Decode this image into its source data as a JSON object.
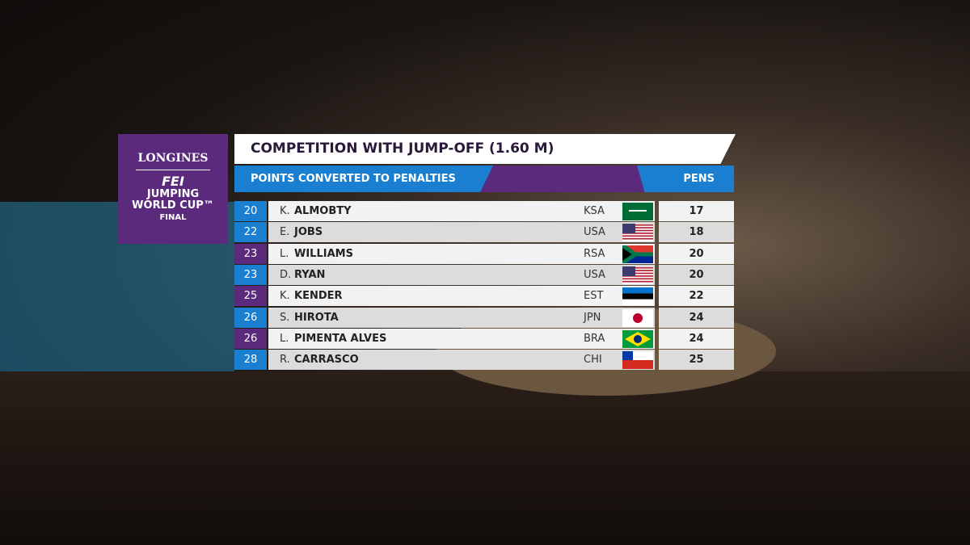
{
  "logo": {
    "brand": "LONGINES",
    "org": "FEI",
    "line1": "JUMPING",
    "line2": "WORLD CUP™",
    "line3": "FINAL"
  },
  "header": {
    "title": "COMPETITION WITH JUMP-OFF (1.60 M)",
    "subtitle": "POINTS CONVERTED TO PENALTIES",
    "column": "PENS"
  },
  "table": {
    "rows": [
      [
        20,
        "K.",
        "ALMOBTY",
        "KSA",
        17
      ],
      [
        22,
        "E.",
        "JOBS",
        "USA",
        18
      ],
      [
        23,
        "L.",
        "WILLIAMS",
        "RSA",
        20
      ],
      [
        23,
        "D.",
        "RYAN",
        "USA",
        20
      ],
      [
        25,
        "K.",
        "KENDER",
        "EST",
        22
      ],
      [
        26,
        "S.",
        "HIROTA",
        "JPN",
        24
      ],
      [
        26,
        "L.",
        "PIMENTA ALVES",
        "BRA",
        24
      ],
      [
        28,
        "R.",
        "CARRASCO",
        "CHI",
        25
      ]
    ]
  }
}
